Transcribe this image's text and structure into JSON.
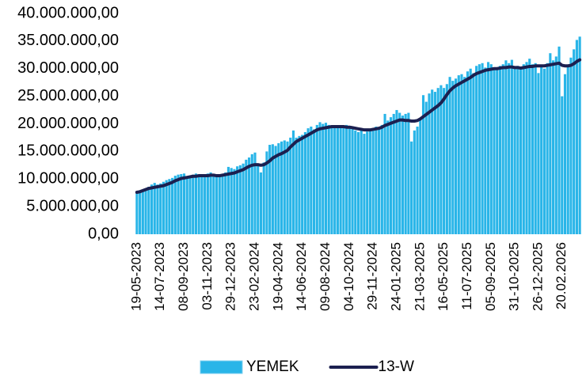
{
  "chart_data": {
    "type": "bar",
    "categories": [
      "19-05-2023",
      null,
      null,
      null,
      null,
      null,
      null,
      null,
      "14-07-2023",
      null,
      null,
      null,
      null,
      null,
      null,
      null,
      "08-09-2023",
      null,
      null,
      null,
      null,
      null,
      null,
      null,
      "03-11-2023",
      null,
      null,
      null,
      null,
      null,
      null,
      null,
      "29-12-2023",
      null,
      null,
      null,
      null,
      null,
      null,
      null,
      "23-02-2024",
      null,
      null,
      null,
      null,
      null,
      null,
      null,
      "19-04-2024",
      null,
      null,
      null,
      null,
      null,
      null,
      null,
      "14-06-2024",
      null,
      null,
      null,
      null,
      null,
      null,
      null,
      "09-08-2024",
      null,
      null,
      null,
      null,
      null,
      null,
      null,
      "04-10-2024",
      null,
      null,
      null,
      null,
      null,
      null,
      null,
      "29-11-2024",
      null,
      null,
      null,
      null,
      null,
      null,
      null,
      "24-01-2025",
      null,
      null,
      null,
      null,
      null,
      null,
      null,
      "21-03-2025",
      null,
      null,
      null,
      null,
      null,
      null,
      null,
      "16-05-2025",
      null,
      null,
      null,
      null,
      null,
      null,
      null,
      "11-07-2025",
      null,
      null,
      null,
      null,
      null,
      null,
      null,
      "05-09-2025",
      null,
      null,
      null,
      null,
      null,
      null,
      null,
      "31-10-2025",
      null,
      null,
      null,
      null,
      null,
      null,
      null,
      "26-12-2025",
      null,
      null,
      null,
      null,
      null,
      null,
      null,
      "20.02.2026",
      null,
      null,
      null,
      null,
      null,
      null
    ],
    "series": [
      {
        "name": "YEMEK",
        "type": "bar",
        "color": "#29b5e8",
        "values": [
          7500000,
          7700000,
          7900000,
          8200000,
          8600000,
          9000000,
          9300000,
          9000000,
          9200000,
          9500000,
          9800000,
          10000000,
          10200000,
          10600000,
          10800000,
          10900000,
          11000000,
          10500000,
          10600000,
          10800000,
          11000000,
          10900000,
          10700000,
          10800000,
          11000000,
          11200000,
          10800000,
          10600000,
          10700000,
          10900000,
          11200000,
          12200000,
          12000000,
          11800000,
          12300000,
          12500000,
          12800000,
          13500000,
          13900000,
          14500000,
          14800000,
          12500000,
          11200000,
          13000000,
          15000000,
          16200000,
          16300000,
          16000000,
          16500000,
          16800000,
          17000000,
          16800000,
          17500000,
          18800000,
          17500000,
          17800000,
          18000000,
          18500000,
          19200000,
          19500000,
          19000000,
          19800000,
          20300000,
          20000000,
          20200000,
          19800000,
          19500000,
          19600000,
          19300000,
          19500000,
          19600000,
          19800000,
          19400000,
          19000000,
          18800000,
          18500000,
          18800000,
          18200000,
          18600000,
          19000000,
          19200000,
          19500000,
          19000000,
          19800000,
          21800000,
          20600000,
          21200000,
          21800000,
          22500000,
          22000000,
          21500000,
          21800000,
          22000000,
          16800000,
          18800000,
          19500000,
          21000000,
          25200000,
          24000000,
          25500000,
          26200000,
          25800000,
          26500000,
          27000000,
          26500000,
          27200000,
          28500000,
          27800000,
          28200000,
          28800000,
          29000000,
          28500000,
          29500000,
          30000000,
          29200000,
          30500000,
          30800000,
          31000000,
          30200000,
          31200000,
          30800000,
          30000000,
          30200000,
          30500000,
          30800000,
          31500000,
          31000000,
          31600000,
          30000000,
          30500000,
          30200000,
          30800000,
          31200000,
          31800000,
          30800000,
          31000000,
          29200000,
          30500000,
          30000000,
          31000000,
          32800000,
          31500000,
          32200000,
          34000000,
          25000000,
          29000000,
          30500000,
          32000000,
          33500000,
          35200000,
          35800000
        ]
      },
      {
        "name": "13-W",
        "type": "line",
        "color": "#1c2050",
        "values": [
          7600000,
          7700000,
          7900000,
          8100000,
          8300000,
          8400000,
          8500000,
          8600000,
          8700000,
          8800000,
          9000000,
          9200000,
          9400000,
          9700000,
          9900000,
          10100000,
          10200000,
          10300000,
          10400000,
          10500000,
          10500000,
          10600000,
          10600000,
          10600000,
          10600000,
          10700000,
          10700000,
          10600000,
          10600000,
          10700000,
          10800000,
          10900000,
          11000000,
          11100000,
          11300000,
          11500000,
          11700000,
          12000000,
          12300000,
          12500000,
          12600000,
          12600000,
          12500000,
          12600000,
          12900000,
          13300000,
          13800000,
          14100000,
          14400000,
          14600000,
          14900000,
          15200000,
          15800000,
          16300000,
          16800000,
          17100000,
          17400000,
          17700000,
          18000000,
          18300000,
          18600000,
          18900000,
          19100000,
          19200000,
          19300000,
          19400000,
          19500000,
          19500000,
          19500000,
          19500000,
          19500000,
          19400000,
          19400000,
          19300000,
          19200000,
          19100000,
          19000000,
          18900000,
          18900000,
          18900000,
          19000000,
          19100000,
          19200000,
          19400000,
          19700000,
          19900000,
          20100000,
          20300000,
          20500000,
          20700000,
          20700000,
          20600000,
          20600000,
          20500000,
          20500000,
          20600000,
          20900000,
          21300000,
          21700000,
          22100000,
          22500000,
          22900000,
          23300000,
          23800000,
          24500000,
          25300000,
          26000000,
          26500000,
          26900000,
          27200000,
          27500000,
          27800000,
          28100000,
          28400000,
          28800000,
          29100000,
          29300000,
          29500000,
          29700000,
          29800000,
          29900000,
          30000000,
          30000000,
          30100000,
          30200000,
          30200000,
          30300000,
          30300000,
          30200000,
          30200000,
          30100000,
          30200000,
          30300000,
          30400000,
          30400000,
          30500000,
          30500000,
          30500000,
          30500000,
          30600000,
          30700000,
          30800000,
          30900000,
          31000000,
          30600000,
          30500000,
          30500000,
          30600000,
          30900000,
          31300000,
          31600000
        ]
      }
    ],
    "ylim": [
      0,
      40000000
    ],
    "yticks": [
      {
        "value": 0,
        "label": "0,00"
      },
      {
        "value": 5000000,
        "label": "5.000.000,00"
      },
      {
        "value": 10000000,
        "label": "10.000.000,00"
      },
      {
        "value": 15000000,
        "label": "15.000.000,00"
      },
      {
        "value": 20000000,
        "label": "20.000.000,00"
      },
      {
        "value": 25000000,
        "label": "25.000.000,00"
      },
      {
        "value": 30000000,
        "label": "30.000.000,00"
      },
      {
        "value": 35000000,
        "label": "35.000.000,00"
      },
      {
        "value": 40000000,
        "label": "40.000.000,00"
      }
    ],
    "grid": false,
    "legend": "bottom"
  }
}
